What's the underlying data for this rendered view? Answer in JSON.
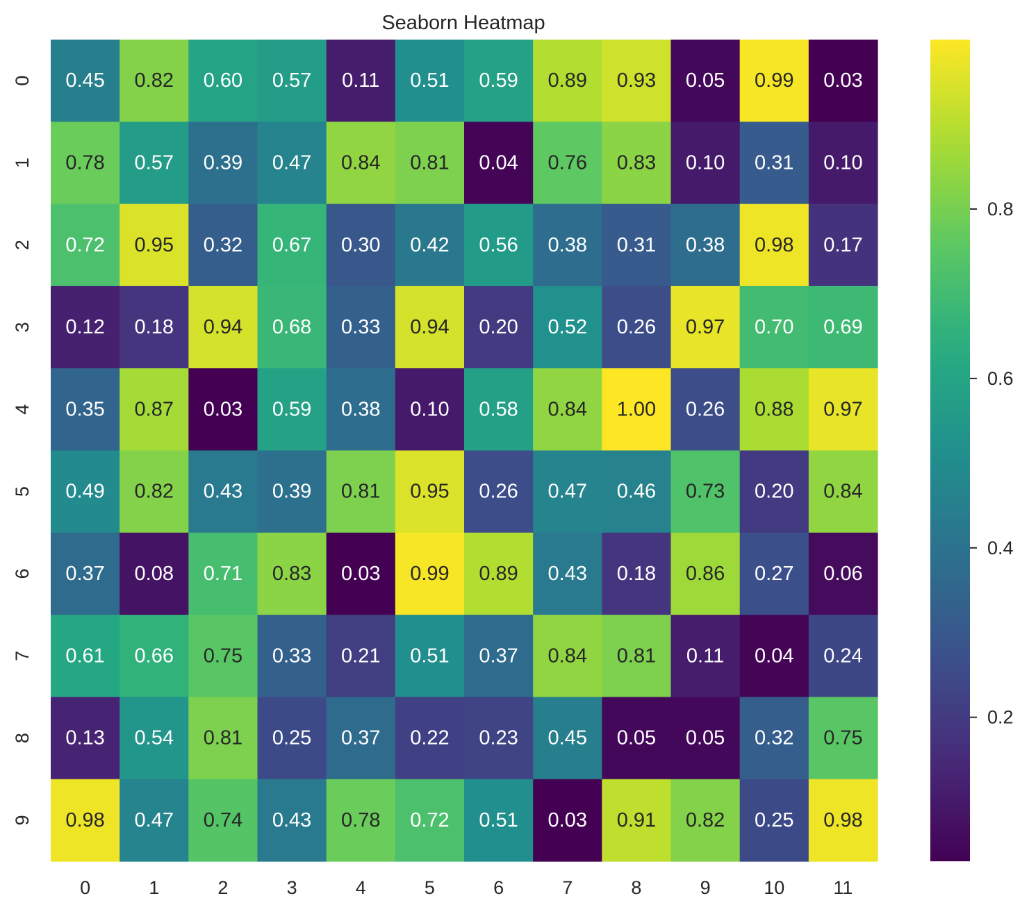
{
  "chart_data": {
    "type": "heatmap",
    "title": "Seaborn Heatmap",
    "xlabel": "",
    "ylabel": "",
    "x_categories": [
      "0",
      "1",
      "2",
      "3",
      "4",
      "5",
      "6",
      "7",
      "8",
      "9",
      "10",
      "11"
    ],
    "y_categories": [
      "0",
      "1",
      "2",
      "3",
      "4",
      "5",
      "6",
      "7",
      "8",
      "9"
    ],
    "values": [
      [
        0.45,
        0.82,
        0.6,
        0.57,
        0.11,
        0.51,
        0.59,
        0.89,
        0.93,
        0.05,
        0.99,
        0.03
      ],
      [
        0.78,
        0.57,
        0.39,
        0.47,
        0.84,
        0.81,
        0.04,
        0.76,
        0.83,
        0.1,
        0.31,
        0.1
      ],
      [
        0.72,
        0.95,
        0.32,
        0.67,
        0.3,
        0.42,
        0.56,
        0.38,
        0.31,
        0.38,
        0.98,
        0.17
      ],
      [
        0.12,
        0.18,
        0.94,
        0.68,
        0.33,
        0.94,
        0.2,
        0.52,
        0.26,
        0.97,
        0.7,
        0.69
      ],
      [
        0.35,
        0.87,
        0.03,
        0.59,
        0.38,
        0.1,
        0.58,
        0.84,
        1.0,
        0.26,
        0.88,
        0.97
      ],
      [
        0.49,
        0.82,
        0.43,
        0.39,
        0.81,
        0.95,
        0.26,
        0.47,
        0.46,
        0.73,
        0.2,
        0.84
      ],
      [
        0.37,
        0.08,
        0.71,
        0.83,
        0.03,
        0.99,
        0.89,
        0.43,
        0.18,
        0.86,
        0.27,
        0.06
      ],
      [
        0.61,
        0.66,
        0.75,
        0.33,
        0.21,
        0.51,
        0.37,
        0.84,
        0.81,
        0.11,
        0.04,
        0.24
      ],
      [
        0.13,
        0.54,
        0.81,
        0.25,
        0.37,
        0.22,
        0.23,
        0.45,
        0.05,
        0.05,
        0.32,
        0.75
      ],
      [
        0.98,
        0.47,
        0.74,
        0.43,
        0.78,
        0.72,
        0.51,
        0.03,
        0.91,
        0.82,
        0.25,
        0.98
      ]
    ],
    "value_format": "0.00",
    "colormap": "viridis",
    "colorbar": {
      "vmin": 0.03,
      "vmax": 1.0,
      "ticks": [
        0.2,
        0.4,
        0.6,
        0.8
      ],
      "tick_labels": [
        "0.2",
        "0.4",
        "0.6",
        "0.8"
      ]
    },
    "grid": false,
    "colors": {
      "text_on_dark": "#ffffff",
      "text_on_light": "#262626",
      "axis_text": "#262626"
    }
  }
}
